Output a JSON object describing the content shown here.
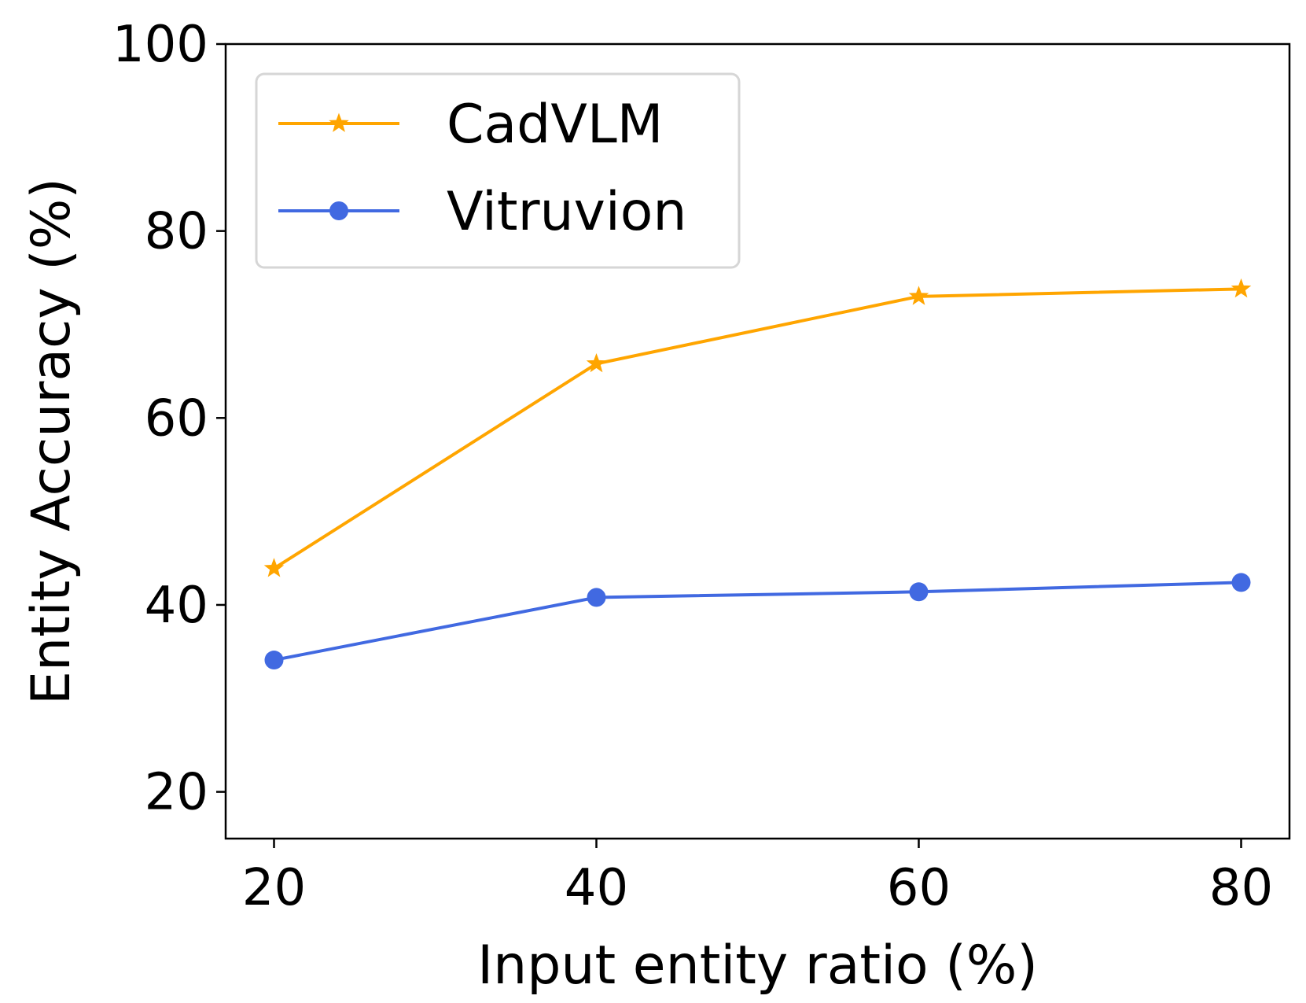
{
  "chart_data": {
    "type": "line",
    "title": "",
    "xlabel": "Input entity ratio (%)",
    "ylabel": "Entity Accuracy (%)",
    "x": [
      20,
      40,
      60,
      80
    ],
    "xticks": [
      20,
      40,
      60,
      80
    ],
    "yticks": [
      20,
      40,
      60,
      80,
      100
    ],
    "xlim": [
      17,
      83
    ],
    "ylim": [
      15,
      100
    ],
    "grid": false,
    "legend_position": "top-left",
    "series": [
      {
        "name": "CadVLM",
        "color": "#FFA500",
        "marker": "star",
        "values": [
          43.9,
          65.8,
          73.0,
          73.8
        ]
      },
      {
        "name": "Vitruvion",
        "color": "#4169E1",
        "marker": "circle",
        "values": [
          34.1,
          40.8,
          41.4,
          42.4
        ]
      }
    ]
  }
}
